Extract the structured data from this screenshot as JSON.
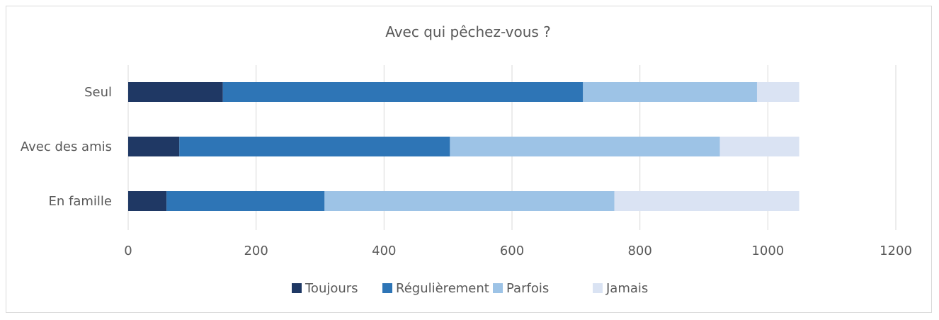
{
  "chart_data": {
    "type": "bar",
    "orientation": "horizontal",
    "stacked": true,
    "title": "Avec qui pêchez-vous ?",
    "categories": [
      "Seul",
      "Avec des amis",
      "En famille"
    ],
    "series": [
      {
        "name": "Toujours",
        "color": "#1f3864",
        "values": [
          148,
          80,
          60
        ]
      },
      {
        "name": "Régulièrement",
        "color": "#2e75b6",
        "values": [
          563,
          423,
          247
        ]
      },
      {
        "name": "Parfois",
        "color": "#9dc3e6",
        "values": [
          272,
          422,
          453
        ]
      },
      {
        "name": "Jamais",
        "color": "#dae3f3",
        "values": [
          66,
          124,
          289
        ]
      }
    ],
    "xlim": [
      0,
      1200
    ],
    "xticks": [
      "0",
      "200",
      "400",
      "600",
      "800",
      "1000",
      "1200"
    ],
    "xlabel": "",
    "ylabel": "",
    "grid": true,
    "legend_position": "bottom"
  }
}
